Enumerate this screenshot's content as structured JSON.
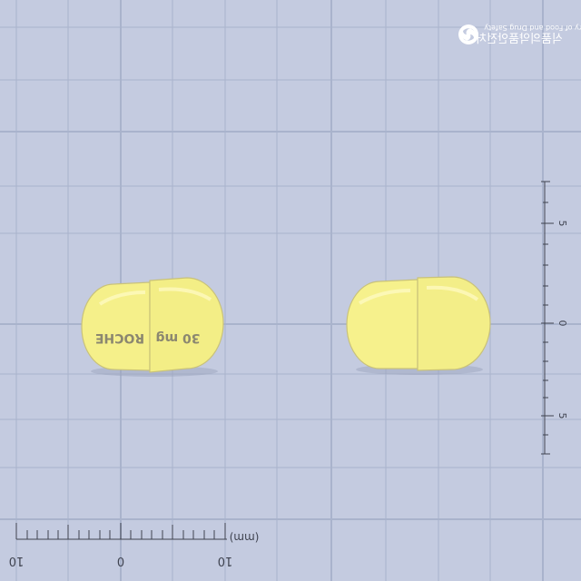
{
  "watermark": {
    "logo": "mfds-logo-icon",
    "text_en": "Ministry of Food and Drug Safety",
    "text_ko": "식품의약품안전처"
  },
  "capsule_left": {
    "imprint_left": "ROCHE",
    "imprint_right": "30 mg",
    "body_color": "#f5f08a",
    "cap_color": "#f3ee86",
    "outline_color": "#c9c27a"
  },
  "capsule_right": {
    "imprint_left": "",
    "imprint_right": "",
    "body_color": "#f6f18c",
    "cap_color": "#f3ee88",
    "outline_color": "#c9c27a"
  },
  "scale_bottom": {
    "unit": "(mm)",
    "labels": [
      "10",
      "0",
      "10"
    ]
  },
  "scale_right": {
    "labels": [
      "5",
      "0",
      "5"
    ]
  },
  "colors": {
    "background": "#c4cbe0",
    "grid_line": "#a9b3cc",
    "scale_ink": "#3f4350"
  }
}
